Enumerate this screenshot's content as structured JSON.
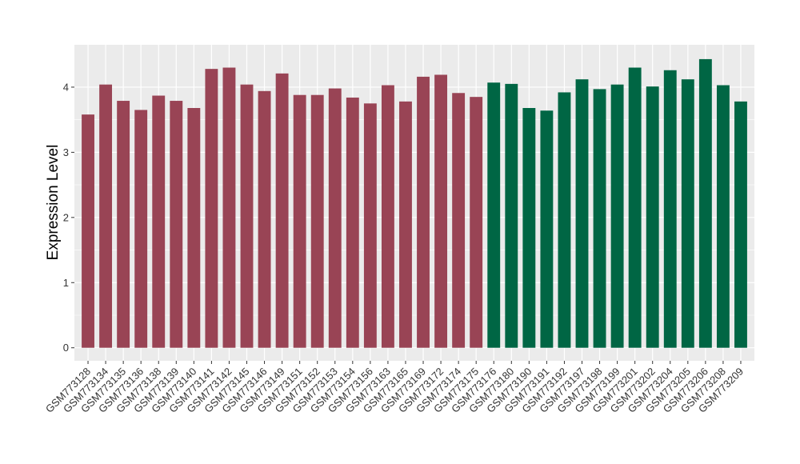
{
  "chart_data": {
    "type": "bar",
    "ylabel": "Expression Level",
    "xlabel": "",
    "ylim": [
      -0.2,
      4.65
    ],
    "yticks": [
      0,
      1,
      2,
      3,
      4
    ],
    "ytick_labels": [
      "0",
      "1",
      "2",
      "3",
      "4"
    ],
    "grid": true,
    "legend": "none",
    "colors": {
      "group1": "#994455",
      "group2": "#006644",
      "panel": "#ebebeb",
      "grid": "#ffffff"
    },
    "categories": [
      "GSM773128",
      "GSM773134",
      "GSM773135",
      "GSM773136",
      "GSM773138",
      "GSM773139",
      "GSM773140",
      "GSM773141",
      "GSM773142",
      "GSM773145",
      "GSM773146",
      "GSM773149",
      "GSM773151",
      "GSM773152",
      "GSM773153",
      "GSM773154",
      "GSM773156",
      "GSM773163",
      "GSM773165",
      "GSM773169",
      "GSM773172",
      "GSM773174",
      "GSM773175",
      "GSM773176",
      "GSM773180",
      "GSM773190",
      "GSM773191",
      "GSM773192",
      "GSM773197",
      "GSM773198",
      "GSM773199",
      "GSM773201",
      "GSM773202",
      "GSM773204",
      "GSM773205",
      "GSM773206",
      "GSM773208",
      "GSM773209"
    ],
    "values": [
      3.58,
      4.04,
      3.79,
      3.65,
      3.87,
      3.79,
      3.68,
      4.28,
      4.3,
      4.04,
      3.94,
      4.21,
      3.88,
      3.88,
      3.98,
      3.84,
      3.75,
      4.03,
      3.78,
      4.16,
      4.19,
      3.91,
      3.85,
      4.07,
      4.05,
      3.68,
      3.64,
      3.92,
      4.12,
      3.97,
      4.04,
      4.3,
      4.01,
      4.26,
      4.12,
      4.43,
      4.03,
      3.78
    ],
    "bar_groups": [
      1,
      1,
      1,
      1,
      1,
      1,
      1,
      1,
      1,
      1,
      1,
      1,
      1,
      1,
      1,
      1,
      1,
      1,
      1,
      1,
      1,
      1,
      1,
      2,
      2,
      2,
      2,
      2,
      2,
      2,
      2,
      2,
      2,
      2,
      2,
      2,
      2,
      2
    ]
  }
}
